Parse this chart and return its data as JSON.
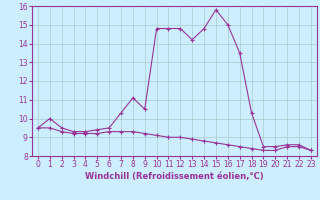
{
  "title": "",
  "xlabel": "Windchill (Refroidissement éolien,°C)",
  "ylabel": "",
  "xlim": [
    -0.5,
    23.5
  ],
  "ylim": [
    8,
    16
  ],
  "yticks": [
    8,
    9,
    10,
    11,
    12,
    13,
    14,
    15,
    16
  ],
  "xticks": [
    0,
    1,
    2,
    3,
    4,
    5,
    6,
    7,
    8,
    9,
    10,
    11,
    12,
    13,
    14,
    15,
    16,
    17,
    18,
    19,
    20,
    21,
    22,
    23
  ],
  "line_color": "#993399",
  "bg_color": "#cceeff",
  "grid_color": "#aacccc",
  "line1_x": [
    0,
    1,
    2,
    3,
    4,
    5,
    6,
    7,
    8,
    9,
    10,
    11,
    12,
    13,
    14,
    15,
    16,
    17,
    18,
    19,
    20,
    21,
    22,
    23
  ],
  "line1_y": [
    9.5,
    10.0,
    9.5,
    9.3,
    9.3,
    9.4,
    9.5,
    10.3,
    11.1,
    10.5,
    14.8,
    14.8,
    14.8,
    14.2,
    14.8,
    15.8,
    15.0,
    13.5,
    10.3,
    8.5,
    8.5,
    8.6,
    8.6,
    8.3
  ],
  "line2_x": [
    0,
    1,
    2,
    3,
    4,
    5,
    6,
    7,
    8,
    9,
    10,
    11,
    12,
    13,
    14,
    15,
    16,
    17,
    18,
    19,
    20,
    21,
    22,
    23
  ],
  "line2_y": [
    9.5,
    9.5,
    9.3,
    9.2,
    9.2,
    9.2,
    9.3,
    9.3,
    9.3,
    9.2,
    9.1,
    9.0,
    9.0,
    8.9,
    8.8,
    8.7,
    8.6,
    8.5,
    8.4,
    8.3,
    8.3,
    8.5,
    8.5,
    8.3
  ]
}
